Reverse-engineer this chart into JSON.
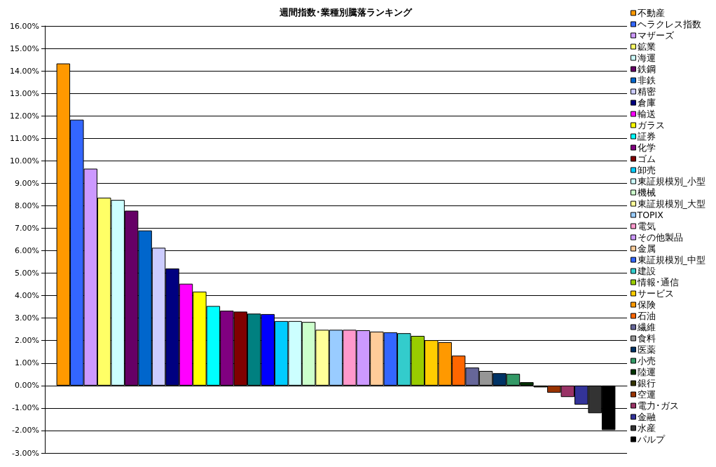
{
  "chart_data": {
    "type": "bar",
    "title": "週間指数･業種別騰落ランキング",
    "categories": [
      null
    ],
    "series": [
      {
        "name": "不動産",
        "color": "#ff9900",
        "values": [
          14.33
        ]
      },
      {
        "name": "ヘラクレス指数",
        "color": "#3366ff",
        "values": [
          11.83
        ]
      },
      {
        "name": "マザーズ",
        "color": "#cc99ff",
        "values": [
          9.65
        ]
      },
      {
        "name": "鉱業",
        "color": "#ffff66",
        "values": [
          8.36
        ]
      },
      {
        "name": "海運",
        "color": "#ccffff",
        "values": [
          8.26
        ]
      },
      {
        "name": "鉄鋼",
        "color": "#660066",
        "values": [
          7.78
        ]
      },
      {
        "name": "非鉄",
        "color": "#0066cc",
        "values": [
          6.9
        ]
      },
      {
        "name": "精密",
        "color": "#ccccff",
        "values": [
          6.13
        ]
      },
      {
        "name": "倉庫",
        "color": "#000080",
        "values": [
          5.21
        ]
      },
      {
        "name": "輸送",
        "color": "#ff00ff",
        "values": [
          4.53
        ]
      },
      {
        "name": "ガラス",
        "color": "#ffff00",
        "values": [
          4.18
        ]
      },
      {
        "name": "証券",
        "color": "#00ffff",
        "values": [
          3.54
        ]
      },
      {
        "name": "化学",
        "color": "#800080",
        "values": [
          3.33
        ]
      },
      {
        "name": "ゴム",
        "color": "#800000",
        "values": [
          3.29
        ]
      },
      {
        "color": "#008080",
        "values": [
          3.2
        ]
      },
      {
        "color": "#0000ff",
        "values": [
          3.18
        ]
      },
      {
        "name": "卸売",
        "color": "#00ccff",
        "values": [
          2.87
        ]
      },
      {
        "name": "東証規模別_小型",
        "color": "#ccffff",
        "values": [
          2.87
        ]
      },
      {
        "name": "機械",
        "color": "#ccffcc",
        "values": [
          2.83
        ]
      },
      {
        "name": "東証規模別_大型",
        "color": "#ffff99",
        "values": [
          2.48
        ]
      },
      {
        "name": "TOPIX",
        "color": "#99ccff",
        "values": [
          2.48
        ]
      },
      {
        "name": "電気",
        "color": "#ff99cc",
        "values": [
          2.48
        ]
      },
      {
        "name": "その他製品",
        "color": "#cc99ff",
        "values": [
          2.46
        ]
      },
      {
        "name": "金属",
        "color": "#ffcc99",
        "values": [
          2.4
        ]
      },
      {
        "name": "東証規模別_中型",
        "color": "#3366ff",
        "values": [
          2.37
        ]
      },
      {
        "name": "建設",
        "color": "#33cccc",
        "values": [
          2.33
        ]
      },
      {
        "name": "情報･通信",
        "color": "#99cc00",
        "values": [
          2.21
        ]
      },
      {
        "name": "サービス",
        "color": "#ffcc00",
        "values": [
          2.02
        ]
      },
      {
        "name": "保険",
        "color": "#ff9900",
        "values": [
          1.93
        ]
      },
      {
        "name": "石油",
        "color": "#ff6600",
        "values": [
          1.33
        ]
      },
      {
        "name": "繊維",
        "color": "#666699",
        "values": [
          0.8
        ]
      },
      {
        "name": "食料",
        "color": "#969696",
        "values": [
          0.65
        ]
      },
      {
        "name": "医薬",
        "color": "#003366",
        "values": [
          0.55
        ]
      },
      {
        "name": "小売",
        "color": "#339966",
        "values": [
          0.52
        ]
      },
      {
        "name": "陸運",
        "color": "#003300",
        "values": [
          0.15
        ]
      },
      {
        "name": "銀行",
        "color": "#333300",
        "values": [
          -0.08
        ]
      },
      {
        "name": "空運",
        "color": "#993300",
        "values": [
          -0.32
        ]
      },
      {
        "name": "電力･ガス",
        "color": "#993366",
        "values": [
          -0.51
        ]
      },
      {
        "name": "金融",
        "color": "#333399",
        "values": [
          -0.85
        ]
      },
      {
        "name": "水産",
        "color": "#333333",
        "values": [
          -1.23
        ]
      },
      {
        "name": "パルプ",
        "color": "#000000",
        "values": [
          -1.98
        ]
      }
    ],
    "ylim": [
      -3,
      16
    ],
    "yticks": [
      {
        "value": -3,
        "label": "-3.00%"
      },
      {
        "value": -2,
        "label": "-2.00%"
      },
      {
        "value": -1,
        "label": "-1.00%"
      },
      {
        "value": 0,
        "label": "0.00%"
      },
      {
        "value": 1,
        "label": "1.00%"
      },
      {
        "value": 2,
        "label": "2.00%"
      },
      {
        "value": 3,
        "label": "3.00%"
      },
      {
        "value": 4,
        "label": "4.00%"
      },
      {
        "value": 5,
        "label": "5.00%"
      },
      {
        "value": 6,
        "label": "6.00%"
      },
      {
        "value": 7,
        "label": "7.00%"
      },
      {
        "value": 8,
        "label": "8.00%"
      },
      {
        "value": 9,
        "label": "9.00%"
      },
      {
        "value": 10,
        "label": "10.00%"
      },
      {
        "value": 11,
        "label": "11.00%"
      },
      {
        "value": 12,
        "label": "12.00%"
      },
      {
        "value": 13,
        "label": "13.00%"
      },
      {
        "value": 14,
        "label": "14.00%"
      },
      {
        "value": 15,
        "label": "15.00%"
      },
      {
        "value": 16,
        "label": "16.00%"
      }
    ],
    "grid": "y",
    "legend": "right"
  }
}
